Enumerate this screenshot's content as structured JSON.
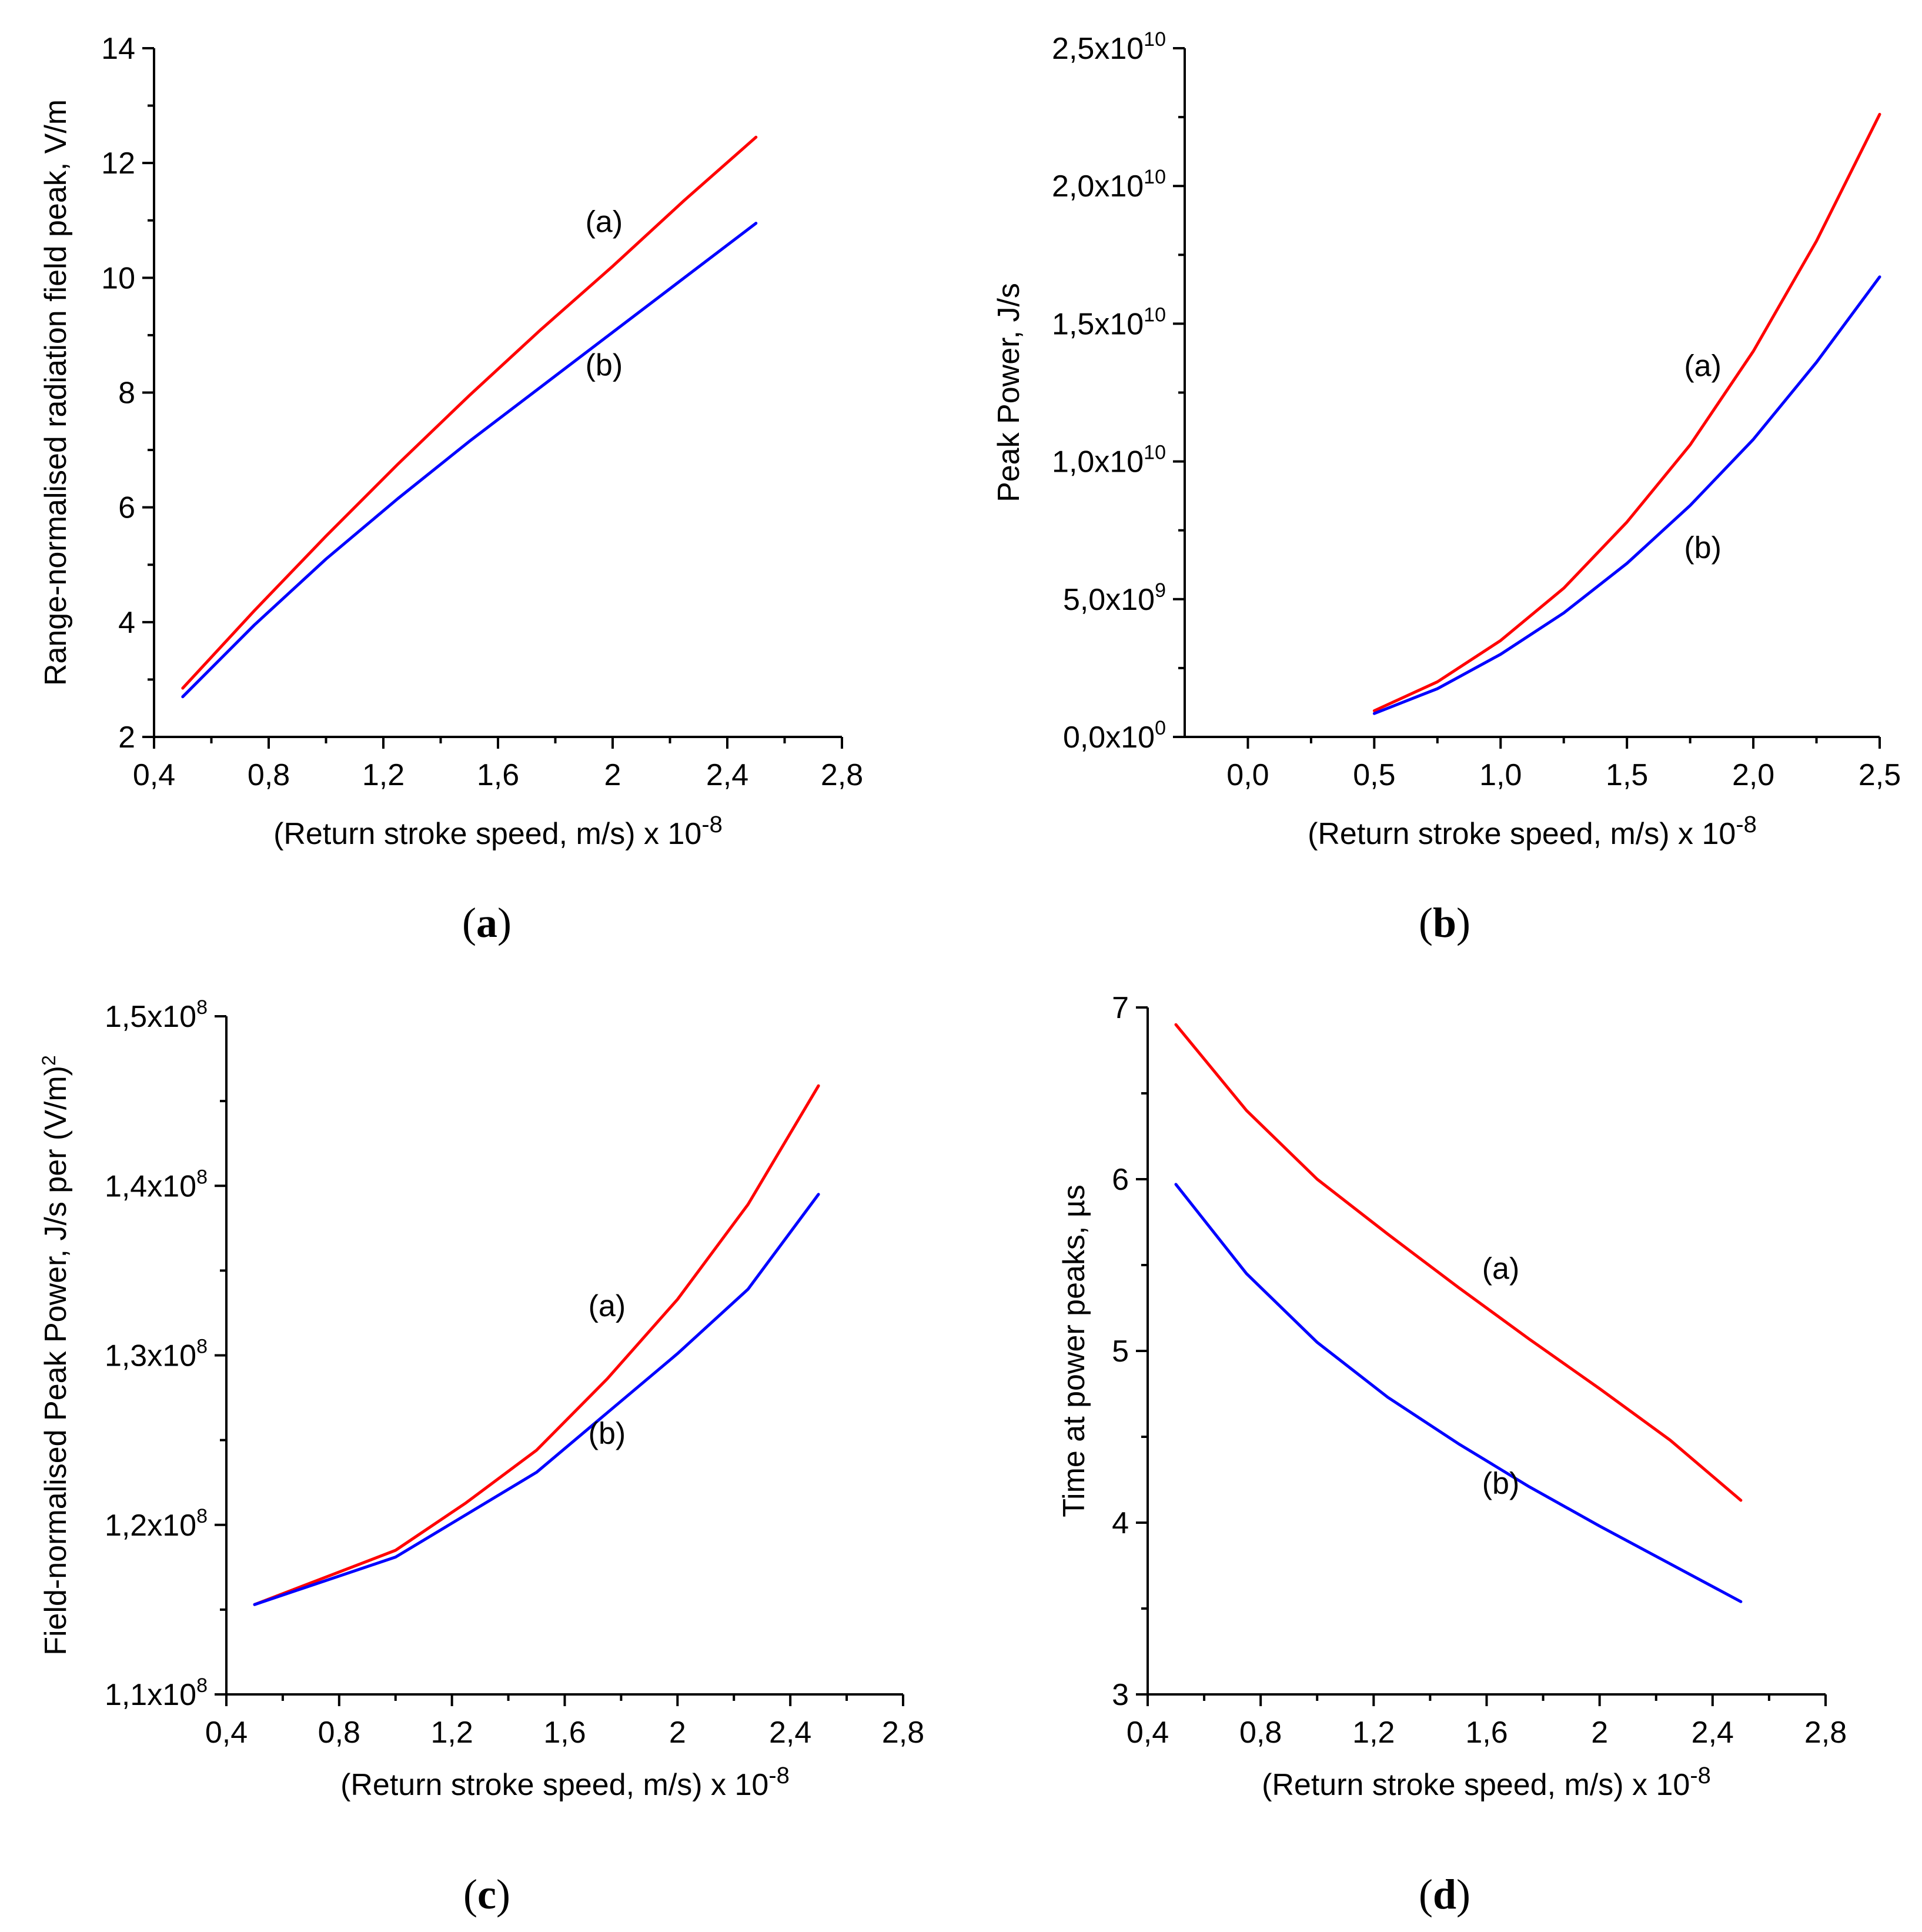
{
  "figure": {
    "colors": {
      "series_a": "#ff0000",
      "series_b": "#0000ff",
      "axis": "#000000"
    }
  },
  "chart_data": [
    {
      "id": "a",
      "type": "line",
      "caption": "a",
      "xlabel": "(Return stroke speed, m/s) x 10",
      "xlabel_exp": "-8",
      "ylabel": "Range-normalised radiation field peak, V/m",
      "xlim": [
        0.4,
        2.8
      ],
      "ylim": [
        2,
        14
      ],
      "xticks": [
        0.4,
        0.8,
        1.2,
        1.6,
        2.0,
        2.4,
        2.8
      ],
      "xtick_labels": [
        "0,4",
        "0,8",
        "1,2",
        "1,6",
        "2",
        "2,4",
        "2,8"
      ],
      "yticks": [
        2,
        4,
        6,
        8,
        10,
        12,
        14
      ],
      "ytick_labels": [
        "2",
        "4",
        "6",
        "8",
        "10",
        "12",
        "14"
      ],
      "x": [
        0.5,
        0.75,
        1.0,
        1.25,
        1.5,
        1.75,
        2.0,
        2.25,
        2.5
      ],
      "series": [
        {
          "name": "(a)",
          "color": "#ff0000",
          "values": [
            2.85,
            4.2,
            5.5,
            6.75,
            7.95,
            9.1,
            10.2,
            11.35,
            12.45
          ]
        },
        {
          "name": "(b)",
          "color": "#0000ff",
          "values": [
            2.7,
            3.95,
            5.1,
            6.15,
            7.15,
            8.1,
            9.05,
            10.0,
            10.95
          ]
        }
      ],
      "annotations": [
        {
          "text": "(a)",
          "x": 1.97,
          "y": 10.8
        },
        {
          "text": "(b)",
          "x": 1.97,
          "y": 8.3
        }
      ]
    },
    {
      "id": "b",
      "type": "line",
      "caption": "b",
      "xlabel": "(Return stroke speed, m/s) x 10",
      "xlabel_exp": "-8",
      "ylabel": "Peak Power, J/s",
      "xlim": [
        -0.25,
        2.5
      ],
      "ylim": [
        0,
        25000000000
      ],
      "xticks": [
        0.0,
        0.5,
        1.0,
        1.5,
        2.0,
        2.5
      ],
      "xtick_labels": [
        "0,0",
        "0,5",
        "1,0",
        "1,5",
        "2,0",
        "2,5"
      ],
      "yticks": [
        0,
        5000000000,
        10000000000,
        15000000000,
        20000000000,
        25000000000
      ],
      "ytick_mantissa": [
        "0,0x10",
        "5,0x10",
        "1,0x10",
        "1,5x10",
        "2,0x10",
        "2,5x10"
      ],
      "ytick_exp": [
        "0",
        "9",
        "10",
        "10",
        "10",
        "10"
      ],
      "x": [
        0.5,
        0.75,
        1.0,
        1.25,
        1.5,
        1.75,
        2.0,
        2.25,
        2.5
      ],
      "series": [
        {
          "name": "(a)",
          "color": "#ff0000",
          "values": [
            950000000,
            2000000000,
            3500000000,
            5400000000,
            7800000000,
            10600000000,
            14000000000,
            18000000000,
            22600000000
          ]
        },
        {
          "name": "(b)",
          "color": "#0000ff",
          "values": [
            850000000,
            1750000000,
            3000000000,
            4500000000,
            6300000000,
            8400000000,
            10800000000,
            13600000000,
            16700000000
          ]
        }
      ],
      "annotations": [
        {
          "text": "(a)",
          "x": 1.8,
          "y": 13100000000
        },
        {
          "text": "(b)",
          "x": 1.8,
          "y": 6500000000
        }
      ]
    },
    {
      "id": "c",
      "type": "line",
      "caption": "c",
      "xlabel": "(Return stroke speed, m/s) x 10",
      "xlabel_exp": "-8",
      "ylabel": "Field-normalised Peak Power, J/s per (V/m)",
      "ylabel_exp": "2",
      "xlim": [
        0.4,
        2.8
      ],
      "ylim": [
        110000000,
        150000000
      ],
      "xticks": [
        0.4,
        0.8,
        1.2,
        1.6,
        2.0,
        2.4,
        2.8
      ],
      "xtick_labels": [
        "0,4",
        "0,8",
        "1,2",
        "1,6",
        "2",
        "2,4",
        "2,8"
      ],
      "yticks": [
        110000000,
        120000000,
        130000000,
        140000000,
        150000000
      ],
      "ytick_mantissa": [
        "1,1x10",
        "1,2x10",
        "1,3x10",
        "1,4x10",
        "1,5x10"
      ],
      "ytick_exp": [
        "8",
        "8",
        "8",
        "8",
        "8"
      ],
      "x": [
        0.5,
        0.75,
        1.0,
        1.25,
        1.5,
        1.75,
        2.0,
        2.25,
        2.5
      ],
      "series": [
        {
          "name": "(a)",
          "color": "#ff0000",
          "values": [
            115300000,
            116900000,
            118500000,
            121300000,
            124400000,
            128600000,
            133300000,
            138900000,
            145900000
          ]
        },
        {
          "name": "(b)",
          "color": "#0000ff",
          "values": [
            115300000,
            116700000,
            118100000,
            120600000,
            123100000,
            126600000,
            130100000,
            133900000,
            139500000
          ]
        }
      ],
      "annotations": [
        {
          "text": "(a)",
          "x": 1.75,
          "y": 132300000
        },
        {
          "text": "(b)",
          "x": 1.75,
          "y": 124800000
        }
      ]
    },
    {
      "id": "d",
      "type": "line",
      "caption": "d",
      "xlabel": "(Return stroke speed, m/s) x 10",
      "xlabel_exp": "-8",
      "ylabel": "Time at power peaks, µs",
      "xlim": [
        0.4,
        2.8
      ],
      "ylim": [
        3,
        7
      ],
      "xticks": [
        0.4,
        0.8,
        1.2,
        1.6,
        2.0,
        2.4,
        2.8
      ],
      "xtick_labels": [
        "0,4",
        "0,8",
        "1,2",
        "1,6",
        "2",
        "2,4",
        "2,8"
      ],
      "yticks": [
        3,
        4,
        5,
        6,
        7
      ],
      "ytick_labels": [
        "3",
        "4",
        "5",
        "6",
        "7"
      ],
      "x": [
        0.5,
        0.75,
        1.0,
        1.25,
        1.5,
        1.75,
        2.0,
        2.25,
        2.5
      ],
      "series": [
        {
          "name": "(a)",
          "color": "#ff0000",
          "values": [
            6.9,
            6.4,
            6.0,
            5.68,
            5.37,
            5.07,
            4.78,
            4.48,
            4.13
          ]
        },
        {
          "name": "(b)",
          "color": "#0000ff",
          "values": [
            5.97,
            5.45,
            5.05,
            4.73,
            4.46,
            4.21,
            3.98,
            3.76,
            3.54
          ]
        }
      ],
      "annotations": [
        {
          "text": "(a)",
          "x": 1.65,
          "y": 5.42
        },
        {
          "text": "(b)",
          "x": 1.65,
          "y": 4.17
        }
      ]
    }
  ]
}
